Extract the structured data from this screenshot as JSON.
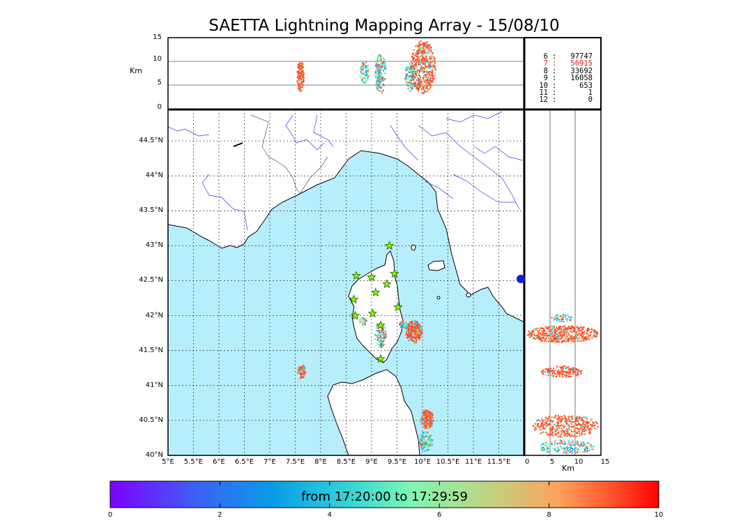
{
  "title": "SAETTA Lightning Mapping Array - 15/08/10",
  "counts": [
    {
      "k": "6",
      "v": "97747",
      "highlight": false
    },
    {
      "k": "7",
      "v": "56915",
      "highlight": true
    },
    {
      "k": "8",
      "v": "33692",
      "highlight": false
    },
    {
      "k": "9",
      "v": "16058",
      "highlight": false
    },
    {
      "k": "10",
      "v": "653",
      "highlight": false
    },
    {
      "k": "11",
      "v": "1",
      "highlight": false
    },
    {
      "k": "12",
      "v": "0",
      "highlight": false
    }
  ],
  "count_sep": ":",
  "km_label": "Km",
  "top_panel_ticks": [
    "15",
    "10",
    "5",
    "0"
  ],
  "lat_ticks": [
    "44.5°N",
    "44°N",
    "43.5°N",
    "43°N",
    "42.5°N",
    "42°N",
    "41.5°N",
    "41°N",
    "40.5°N",
    "40°N"
  ],
  "lon_ticks": [
    "5°E",
    "5.5°E",
    "6°E",
    "6.5°E",
    "7°E",
    "7.5°E",
    "8°E",
    "8.5°E",
    "9°E",
    "9.5°E",
    "10°E",
    "10.5°E",
    "11°E",
    "11.5°E"
  ],
  "side_ticks": [
    "0",
    "5",
    "10",
    "15"
  ],
  "colorbar": {
    "label": "from 17:20:00 to 17:29:59",
    "ticks": [
      "0",
      "2",
      "4",
      "6",
      "8",
      "10"
    ],
    "range": [
      0,
      10
    ]
  },
  "map_extent": {
    "lon": [
      5,
      12
    ],
    "lat": [
      40,
      44.95
    ]
  },
  "colors": {
    "sea": "#b7eefb",
    "rivers": "#3a3adf",
    "station": "#7cfc00",
    "highlight": "#e8191a"
  },
  "stations": [
    {
      "lon": 9.35,
      "lat": 43.0
    },
    {
      "lon": 8.7,
      "lat": 42.57
    },
    {
      "lon": 9.0,
      "lat": 42.55
    },
    {
      "lon": 9.45,
      "lat": 42.6
    },
    {
      "lon": 9.3,
      "lat": 42.45
    },
    {
      "lon": 9.08,
      "lat": 42.33
    },
    {
      "lon": 8.65,
      "lat": 42.23
    },
    {
      "lon": 9.52,
      "lat": 42.12
    },
    {
      "lon": 8.68,
      "lat": 42.0
    },
    {
      "lon": 9.02,
      "lat": 42.03
    },
    {
      "lon": 9.18,
      "lat": 41.86
    },
    {
      "lon": 9.18,
      "lat": 41.38
    }
  ]
}
